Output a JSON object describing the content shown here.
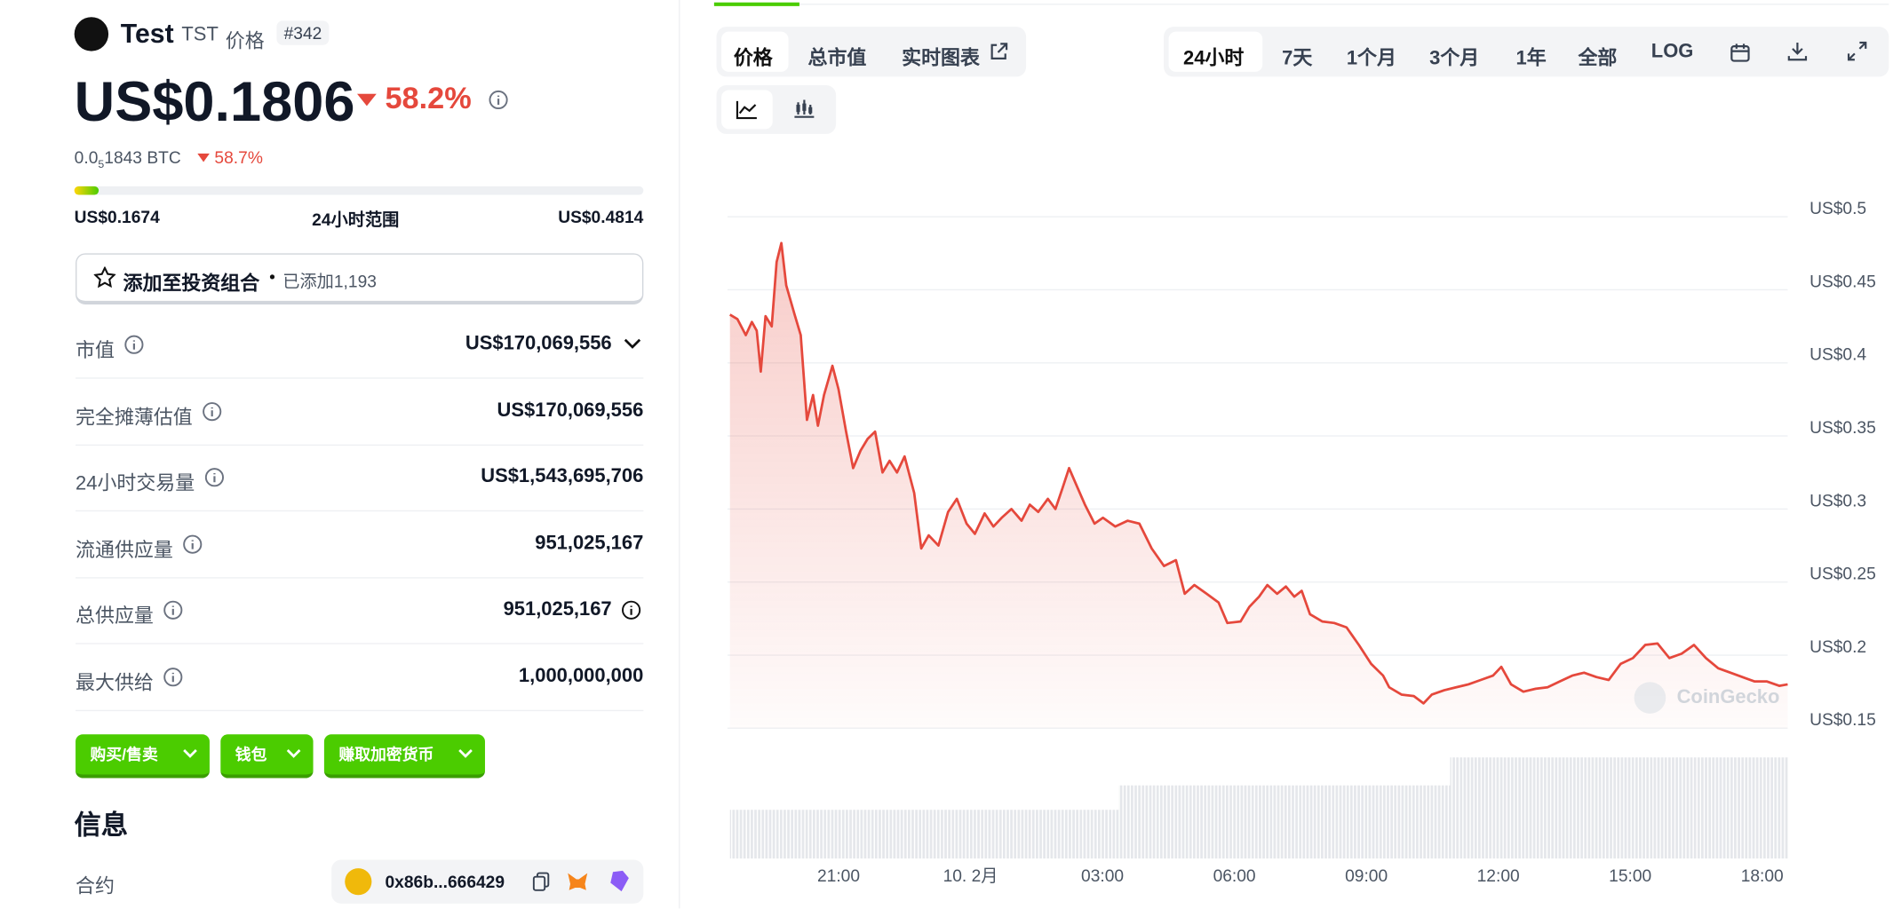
{
  "header": {
    "name": "Test",
    "symbol": "TST",
    "suffix": "价格",
    "rank": "#342"
  },
  "price": {
    "value": "US$0.1806",
    "change": "58.2%",
    "btc_lead": "0.0",
    "btc_sub": "5",
    "btc_rest": "1843 BTC",
    "btc_change": "58.7%"
  },
  "range": {
    "low": "US$0.1674",
    "label": "24小时范围",
    "high": "US$0.4814"
  },
  "portfolio": {
    "label": "添加至投资组合",
    "added": "已添加1,193"
  },
  "stats": [
    {
      "label": "市值",
      "value": "US$170,069,556"
    },
    {
      "label": "完全摊薄估值",
      "value": "US$170,069,556"
    },
    {
      "label": "24小时交易量",
      "value": "US$1,543,695,706"
    },
    {
      "label": "流通供应量",
      "value": "951,025,167"
    },
    {
      "label": "总供应量",
      "value": "951,025,167"
    },
    {
      "label": "最大供给",
      "value": "1,000,000,000"
    }
  ],
  "buttons": [
    "购买/售卖",
    "钱包",
    "赚取加密货币"
  ],
  "info": {
    "title": "信息",
    "contract_label": "合约",
    "contract": "0x86b...666429"
  },
  "tabs": [
    "价格",
    "总市值",
    "实时图表"
  ],
  "ranges": [
    "24小时",
    "7天",
    "1个月",
    "3个月",
    "1年",
    "全部",
    "LOG"
  ],
  "chart_data": {
    "type": "line",
    "color": "#e5483c",
    "grid": true,
    "annotation": "CoinGecko",
    "x": [
      18.53,
      18.7,
      18.89,
      19.03,
      19.14,
      19.23,
      19.34,
      19.48,
      19.59,
      19.7,
      19.81,
      20.0,
      20.14,
      20.28,
      20.42,
      20.53,
      20.67,
      20.86,
      21.0,
      21.17,
      21.33,
      21.5,
      21.66,
      21.83,
      22.0,
      22.16,
      22.33,
      22.5,
      22.72,
      22.88,
      23.05,
      23.27,
      23.49,
      23.69,
      23.91,
      24.1,
      24.32,
      24.52,
      24.71,
      24.93,
      25.16,
      25.35,
      25.54,
      25.76,
      25.93,
      26.1,
      26.24,
      26.4,
      26.6,
      26.82,
      27.01,
      27.29,
      27.57,
      27.84,
      28.12,
      28.4,
      28.67,
      28.87,
      29.09,
      29.37,
      29.64,
      29.84,
      30.14,
      30.34,
      30.56,
      30.75,
      30.97,
      31.17,
      31.36,
      31.53,
      31.72,
      32.0,
      32.27,
      32.55,
      32.83,
      33.11,
      33.38,
      33.52,
      33.8,
      34.08,
      34.3,
      34.49,
      34.77,
      35.04,
      35.32,
      35.6,
      35.88,
      36.07,
      36.29,
      36.57,
      36.85,
      37.12,
      37.4,
      37.68,
      37.95,
      38.23,
      38.51,
      38.78,
      39.06,
      39.34,
      39.62,
      39.89,
      40.17,
      40.45,
      40.72,
      41.0,
      41.28,
      41.55,
      41.83,
      42.11,
      42.39,
      42.58
    ],
    "values": [
      0.433,
      0.43,
      0.419,
      0.428,
      0.422,
      0.394,
      0.432,
      0.425,
      0.469,
      0.482,
      0.453,
      0.433,
      0.419,
      0.361,
      0.378,
      0.357,
      0.378,
      0.398,
      0.382,
      0.353,
      0.328,
      0.34,
      0.348,
      0.353,
      0.325,
      0.333,
      0.325,
      0.336,
      0.311,
      0.273,
      0.282,
      0.275,
      0.298,
      0.307,
      0.29,
      0.283,
      0.297,
      0.288,
      0.294,
      0.3,
      0.292,
      0.303,
      0.298,
      0.307,
      0.3,
      0.315,
      0.328,
      0.317,
      0.303,
      0.29,
      0.294,
      0.288,
      0.292,
      0.29,
      0.273,
      0.261,
      0.265,
      0.242,
      0.248,
      0.242,
      0.236,
      0.222,
      0.223,
      0.233,
      0.24,
      0.248,
      0.242,
      0.247,
      0.24,
      0.244,
      0.228,
      0.223,
      0.222,
      0.219,
      0.207,
      0.194,
      0.186,
      0.178,
      0.173,
      0.172,
      0.167,
      0.173,
      0.176,
      0.178,
      0.18,
      0.183,
      0.186,
      0.192,
      0.18,
      0.175,
      0.177,
      0.178,
      0.182,
      0.186,
      0.188,
      0.185,
      0.183,
      0.194,
      0.198,
      0.207,
      0.208,
      0.198,
      0.201,
      0.207,
      0.198,
      0.191,
      0.188,
      0.185,
      0.182,
      0.182,
      0.179,
      0.18
    ],
    "xlim": [
      18.53,
      42.58
    ],
    "ylim": [
      0.15,
      0.5
    ],
    "xticks": [
      {
        "value": 21,
        "label": "21:00"
      },
      {
        "value": 24,
        "label": "10. 2月"
      },
      {
        "value": 27,
        "label": "03:00"
      },
      {
        "value": 30,
        "label": "06:00"
      },
      {
        "value": 33,
        "label": "09:00"
      },
      {
        "value": 36,
        "label": "12:00"
      },
      {
        "value": 39,
        "label": "15:00"
      },
      {
        "value": 42,
        "label": "18:00"
      }
    ],
    "yticks": [
      {
        "value": 0.15,
        "label": "US$0.15"
      },
      {
        "value": 0.2,
        "label": "US$0.2"
      },
      {
        "value": 0.25,
        "label": "US$0.25"
      },
      {
        "value": 0.3,
        "label": "US$0.3"
      },
      {
        "value": 0.35,
        "label": "US$0.35"
      },
      {
        "value": 0.4,
        "label": "US$0.4"
      },
      {
        "value": 0.45,
        "label": "US$0.45"
      },
      {
        "value": 0.5,
        "label": "US$0.5"
      }
    ]
  }
}
